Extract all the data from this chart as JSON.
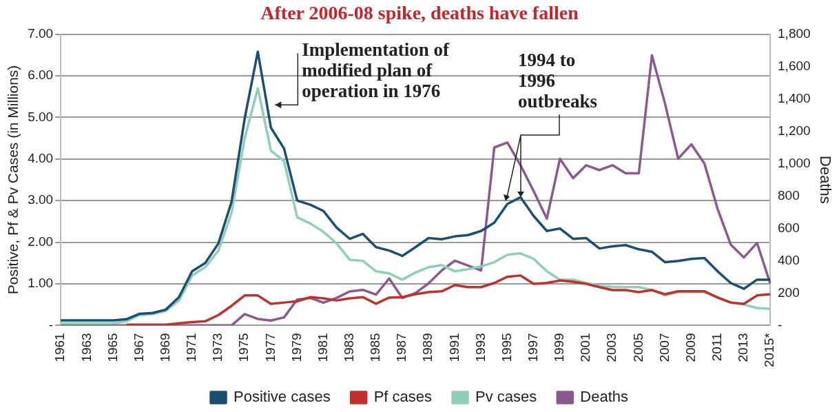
{
  "chart_data": {
    "type": "line",
    "title": "After 2006-08 spike, deaths have fallen",
    "ylabel": "Positive, Pf & Pv Cases (in Millions)",
    "y2label": "Deaths",
    "categories": [
      "1961",
      null,
      "1963",
      null,
      "1965",
      null,
      "1967",
      null,
      "1969",
      null,
      "1971",
      null,
      "1973",
      null,
      "1975",
      null,
      "1977",
      null,
      "1979",
      null,
      "1981",
      null,
      "1983",
      null,
      "1985",
      null,
      "1987",
      null,
      "1989",
      null,
      "1991",
      null,
      "1993",
      null,
      "1995",
      null,
      "1997",
      null,
      "1999",
      null,
      "2001",
      null,
      "2003",
      null,
      "2005",
      null,
      "2007",
      null,
      "2009",
      null,
      "2011",
      null,
      "2013",
      null,
      "2015*"
    ],
    "series": [
      {
        "name": "Positive cases",
        "color": "#1b4f72",
        "values": [
          0.12,
          0.12,
          0.12,
          0.12,
          0.12,
          0.15,
          0.28,
          0.3,
          0.38,
          0.68,
          1.3,
          1.5,
          1.97,
          2.97,
          4.97,
          6.58,
          4.75,
          4.25,
          3.0,
          2.9,
          2.75,
          2.35,
          2.08,
          2.2,
          1.88,
          1.8,
          1.67,
          1.88,
          2.1,
          2.07,
          2.14,
          2.17,
          2.27,
          2.47,
          2.92,
          3.08,
          2.63,
          2.27,
          2.33,
          2.08,
          2.1,
          1.85,
          1.9,
          1.93,
          1.83,
          1.77,
          1.52,
          1.55,
          1.6,
          1.62,
          1.3,
          1.02,
          0.88,
          1.1,
          1.1
        ]
      },
      {
        "name": "Pf cases",
        "color": "#c0302c",
        "values": [
          null,
          null,
          null,
          null,
          null,
          0.02,
          0.02,
          0.02,
          0.02,
          0.05,
          0.08,
          0.1,
          0.25,
          0.47,
          0.72,
          0.72,
          0.52,
          0.55,
          0.58,
          0.68,
          0.65,
          0.6,
          0.65,
          0.68,
          0.52,
          0.67,
          0.68,
          0.75,
          0.8,
          0.82,
          0.97,
          0.92,
          0.92,
          1.02,
          1.17,
          1.2,
          1.0,
          1.02,
          1.08,
          1.05,
          1.0,
          0.92,
          0.85,
          0.85,
          0.8,
          0.85,
          0.75,
          0.82,
          0.82,
          0.82,
          0.67,
          0.55,
          0.52,
          0.72,
          0.75
        ]
      },
      {
        "name": "Pv cases",
        "color": "#8fcfb8",
        "values": [
          0.05,
          0.05,
          0.05,
          0.05,
          0.05,
          0.1,
          0.25,
          0.27,
          0.35,
          0.6,
          1.2,
          1.4,
          1.8,
          2.7,
          4.5,
          5.7,
          4.2,
          3.95,
          2.6,
          2.45,
          2.25,
          1.97,
          1.58,
          1.55,
          1.3,
          1.25,
          1.1,
          1.27,
          1.4,
          1.45,
          1.3,
          1.35,
          1.42,
          1.52,
          1.7,
          1.73,
          1.6,
          1.3,
          1.1,
          1.1,
          1.02,
          0.95,
          0.93,
          0.92,
          0.92,
          0.85,
          0.72,
          0.8,
          0.8,
          0.8,
          0.68,
          0.55,
          0.5,
          0.42,
          0.4
        ]
      },
      {
        "name": "Deaths",
        "color": "#8a5a8e",
        "axis": "y2",
        "values": [
          0,
          0,
          0,
          0,
          0,
          0,
          0,
          0,
          0,
          0,
          0,
          0,
          0,
          0,
          70,
          40,
          30,
          50,
          160,
          170,
          140,
          170,
          210,
          220,
          190,
          290,
          170,
          200,
          260,
          340,
          400,
          370,
          340,
          1100,
          1130,
          990,
          830,
          660,
          1030,
          910,
          990,
          960,
          990,
          940,
          940,
          1670,
          1370,
          1030,
          1120,
          1000,
          720,
          500,
          420,
          510,
          260
        ]
      }
    ],
    "ylim": [
      0,
      7
    ],
    "yticks": [
      {
        "value": 0,
        "label": "-"
      },
      {
        "value": 1,
        "label": "1.00"
      },
      {
        "value": 2,
        "label": "2.00"
      },
      {
        "value": 3,
        "label": "3.00"
      },
      {
        "value": 4,
        "label": "4.00"
      },
      {
        "value": 5,
        "label": "5.00"
      },
      {
        "value": 6,
        "label": "6.00"
      },
      {
        "value": 7,
        "label": "7.00"
      }
    ],
    "y2lim": [
      0,
      1800
    ],
    "y2ticks": [
      {
        "value": 0,
        "label": "-"
      },
      200,
      400,
      600,
      800,
      {
        "value": 1000,
        "label": "1,000"
      },
      {
        "value": 1200,
        "label": "1,200"
      },
      {
        "value": 1400,
        "label": "1,400"
      },
      {
        "value": 1600,
        "label": "1,600"
      },
      {
        "value": 1800,
        "label": "1,800"
      }
    ],
    "annotations": [
      {
        "text": "Implementation of modified plan of operation in 1976",
        "x": "1977",
        "y": 5.3
      },
      "1994 to 1996 outbreaks"
    ],
    "grid": "y",
    "legend": "bottom",
    "marker": "none",
    "line_style": "solid"
  }
}
